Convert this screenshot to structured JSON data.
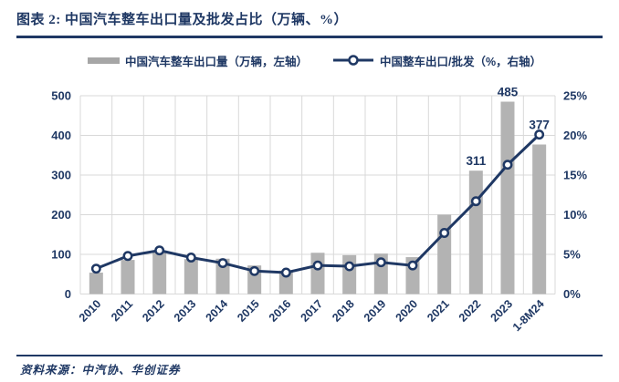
{
  "title": "图表 2: 中国汽车整车出口量及批发占比（万辆、%）",
  "source_note": "资料来源：中汽协、华创证券",
  "colors": {
    "navy": "#1f3864",
    "bar": "#b3b3b3",
    "bar_legend": "#a6a6a6",
    "grid": "#d9d9d9",
    "background": "#ffffff"
  },
  "legend": {
    "bars_label": "中国汽车整车出口量（万辆，左轴）",
    "line_label": "中国整车出口/批发（%，右轴）"
  },
  "chart_data": {
    "type": "bar",
    "subtype": "bar+line combo, dual axis",
    "categories": [
      "2010",
      "2011",
      "2012",
      "2013",
      "2014",
      "2015",
      "2016",
      "2017",
      "2018",
      "2019",
      "2020",
      "2021",
      "2022",
      "2023",
      "1-8M24"
    ],
    "series": [
      {
        "name": "中国汽车整车出口量（万辆，左轴）",
        "type": "bar",
        "axis": "left",
        "values": [
          54,
          86,
          106,
          88,
          89,
          72,
          59,
          104,
          98,
          102,
          93,
          200,
          311,
          485,
          377
        ]
      },
      {
        "name": "中国整车出口/批发（%，右轴）",
        "type": "line",
        "axis": "right",
        "values": [
          3.2,
          4.8,
          5.5,
          4.6,
          3.9,
          2.9,
          2.7,
          3.6,
          3.5,
          4.0,
          3.6,
          7.7,
          11.7,
          16.3,
          20.1
        ]
      }
    ],
    "left_axis": {
      "min": 0,
      "max": 500,
      "step": 100,
      "ticks": [
        "500",
        "400",
        "300",
        "200",
        "100",
        "0"
      ]
    },
    "right_axis": {
      "min": 0,
      "max": 25,
      "step": 5,
      "ticks": [
        "25%",
        "20%",
        "15%",
        "10%",
        "5%",
        "0%"
      ]
    },
    "data_labels": [
      {
        "category": "2022",
        "text": "311"
      },
      {
        "category": "2023",
        "text": "485"
      },
      {
        "category": "1-8M24",
        "text": "377"
      }
    ],
    "grid": true,
    "legend_position": "top",
    "x_label_rotation_deg": -45
  }
}
